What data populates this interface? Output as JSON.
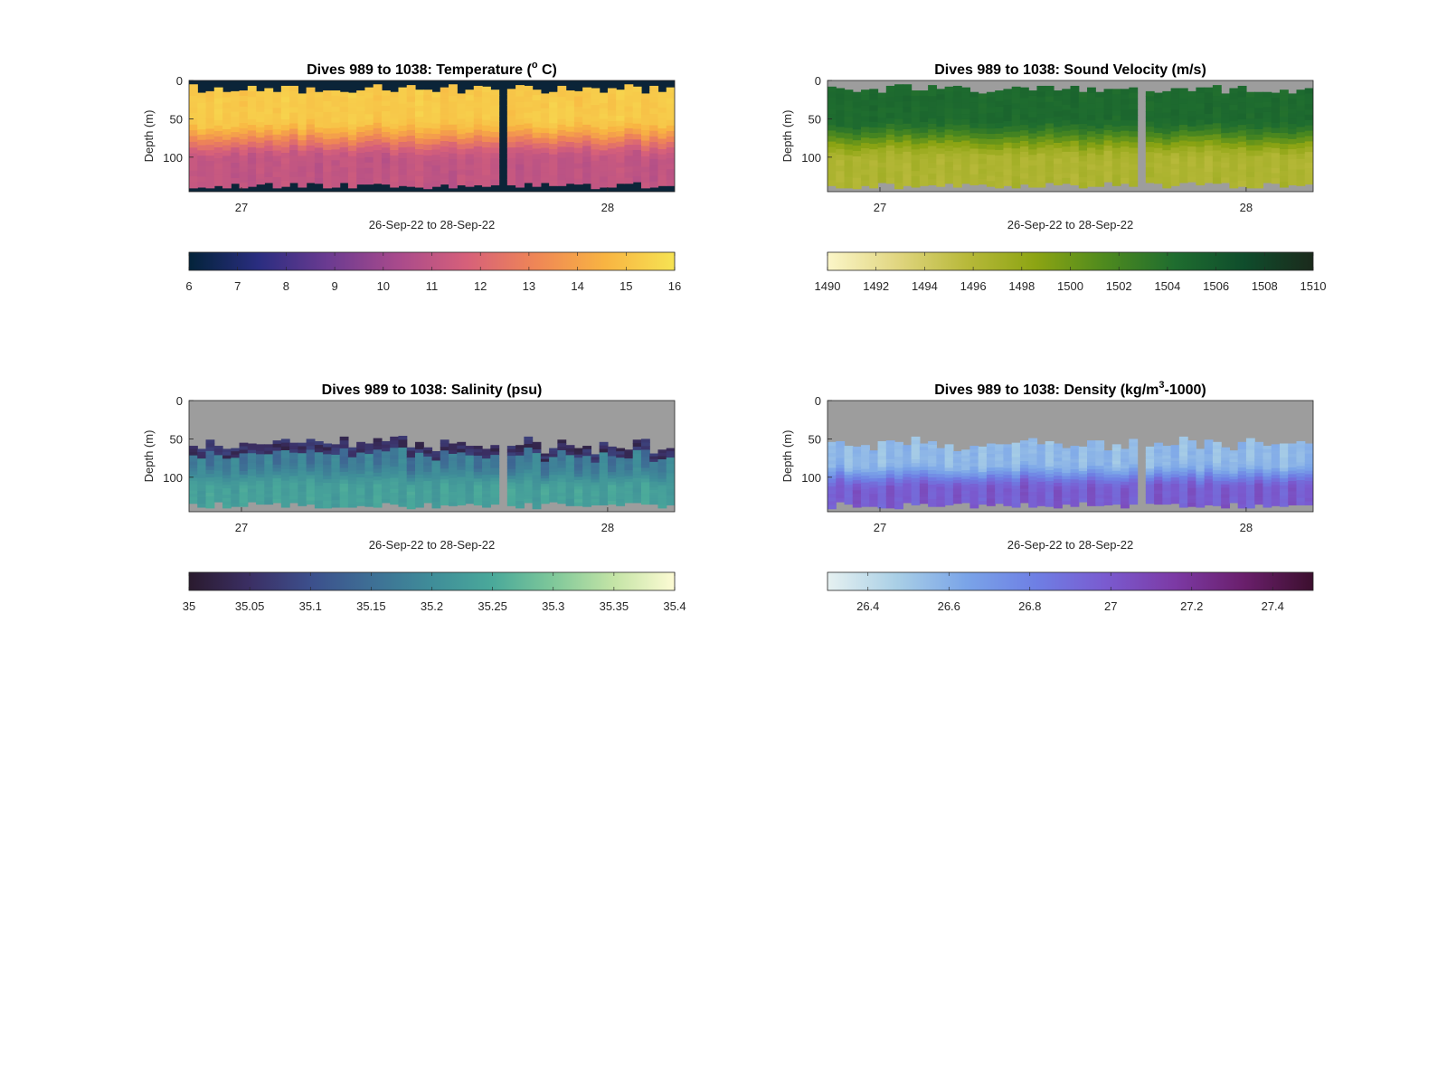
{
  "chart_data": [
    {
      "type": "heatmap",
      "title_main": "Dives 989 to 1038: Temperature (",
      "title_sup": "o",
      "title_end": " C)",
      "ylabel": "Depth (m)",
      "xlabel": "26-Sep-22 to 28-Sep-22",
      "x_ticks": [
        "27",
        "28"
      ],
      "y_ticks": [
        "0",
        "50",
        "100"
      ],
      "ylim": [
        0,
        145
      ],
      "colorbar_ticks": [
        "6",
        "7",
        "8",
        "9",
        "10",
        "11",
        "12",
        "13",
        "14",
        "15",
        "16"
      ],
      "clim": [
        6,
        16
      ],
      "colormap": [
        "#03233a",
        "#2a2d80",
        "#6b3b91",
        "#a84a8c",
        "#d6607a",
        "#ef8656",
        "#f8b442",
        "#f6e353"
      ],
      "nan_color": "#0b2438",
      "profile_upper": [
        15.2,
        15.3,
        15.1,
        15.4,
        15.2,
        15.3,
        15.0,
        15.2
      ],
      "profile_lower": [
        11.2,
        11.0,
        11.1,
        11.3,
        11.0,
        10.9,
        11.1,
        10.8
      ]
    },
    {
      "type": "heatmap",
      "title_main": "Dives 989 to 1038: Sound Velocity (m/s)",
      "title_sup": "",
      "title_end": "",
      "ylabel": "Depth (m)",
      "xlabel": "26-Sep-22 to 28-Sep-22",
      "x_ticks": [
        "27",
        "28"
      ],
      "y_ticks": [
        "0",
        "50",
        "100"
      ],
      "ylim": [
        0,
        145
      ],
      "colorbar_ticks": [
        "1490",
        "1492",
        "1494",
        "1496",
        "1498",
        "1500",
        "1502",
        "1504",
        "1506",
        "1508",
        "1510"
      ],
      "clim": [
        1490,
        1510
      ],
      "colormap": [
        "#fbf6c8",
        "#e1d681",
        "#b8b93a",
        "#8ca413",
        "#4e8a1e",
        "#1f6d2f",
        "#0f4d2c",
        "#1b2a1c"
      ],
      "nan_color": "#9d9d9d",
      "profile_upper": [
        1504.5,
        1504.8,
        1504.3,
        1504.6
      ],
      "profile_lower": [
        1496.5,
        1496.0,
        1496.8,
        1496.2
      ]
    },
    {
      "type": "heatmap",
      "title_main": "Dives 989 to 1038: Salinity (psu)",
      "title_sup": "",
      "title_end": "",
      "ylabel": "Depth (m)",
      "xlabel": "26-Sep-22 to 28-Sep-22",
      "x_ticks": [
        "27",
        "28"
      ],
      "y_ticks": [
        "0",
        "50",
        "100"
      ],
      "ylim": [
        0,
        145
      ],
      "colorbar_ticks": [
        "35",
        "35.05",
        "35.1",
        "35.15",
        "35.2",
        "35.25",
        "35.3",
        "35.35",
        "35.4"
      ],
      "clim": [
        35,
        35.4
      ],
      "colormap": [
        "#2a1a2e",
        "#3b2f64",
        "#3c4f8c",
        "#3e6f95",
        "#3f8d99",
        "#4aa99a",
        "#7fc89a",
        "#c4e4a6",
        "#fdfbd4"
      ],
      "nan_color": "#9d9d9d",
      "profile_upper": [
        35.16,
        35.2,
        35.14,
        35.18
      ],
      "profile_lower": [
        35.24,
        35.22,
        35.25,
        35.23
      ]
    },
    {
      "type": "heatmap",
      "title_main": "Dives 989 to 1038: Density (kg/m",
      "title_sup": "3",
      "title_end": "-1000)",
      "ylabel": "Depth (m)",
      "xlabel": "26-Sep-22 to 28-Sep-22",
      "x_ticks": [
        "27",
        "28"
      ],
      "y_ticks": [
        "0",
        "50",
        "100"
      ],
      "ylim": [
        0,
        145
      ],
      "colorbar_ticks": [
        "26.4",
        "26.6",
        "26.8",
        "27",
        "27.2",
        "27.4"
      ],
      "clim": [
        26.3,
        27.5
      ],
      "colormap": [
        "#e6f1f1",
        "#a9cfe6",
        "#7aa4e8",
        "#6e7fe4",
        "#7a5bd0",
        "#7c3aa5",
        "#6a1f6c",
        "#3c0f2e"
      ],
      "nan_color": "#9d9d9d",
      "profile_upper": [
        26.55,
        26.6,
        26.5,
        26.58
      ],
      "profile_lower": [
        26.95,
        27.0,
        26.92,
        27.05
      ]
    }
  ]
}
